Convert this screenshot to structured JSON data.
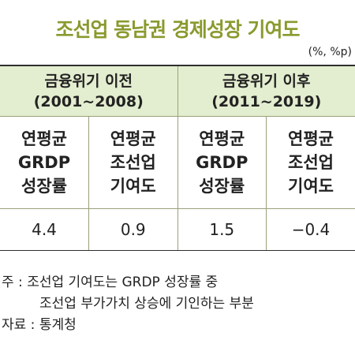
{
  "title": "조선업 동남권 경제성장 기여도",
  "unit": "(%, %p)",
  "table": {
    "groups": [
      {
        "line1": "금융위기 이전",
        "line2": "(2001~2008)"
      },
      {
        "line1": "금융위기 이후",
        "line2": "(2011~2019)"
      }
    ],
    "columns": [
      [
        "연평균",
        "GRDP",
        "성장률"
      ],
      [
        "연평균",
        "조선업",
        "기여도"
      ],
      [
        "연평균",
        "GRDP",
        "성장률"
      ],
      [
        "연평균",
        "조선업",
        "기여도"
      ]
    ],
    "values": [
      "4.4",
      "0.9",
      "1.5",
      "−0.4"
    ]
  },
  "notes": {
    "note_prefix": "주 : ",
    "note_line1": "조선업 기여도는 GRDP 성장률 중",
    "note_line2": "조선업 부가가치 상승에 기인하는 부분",
    "source": "자료 : 통계청"
  }
}
